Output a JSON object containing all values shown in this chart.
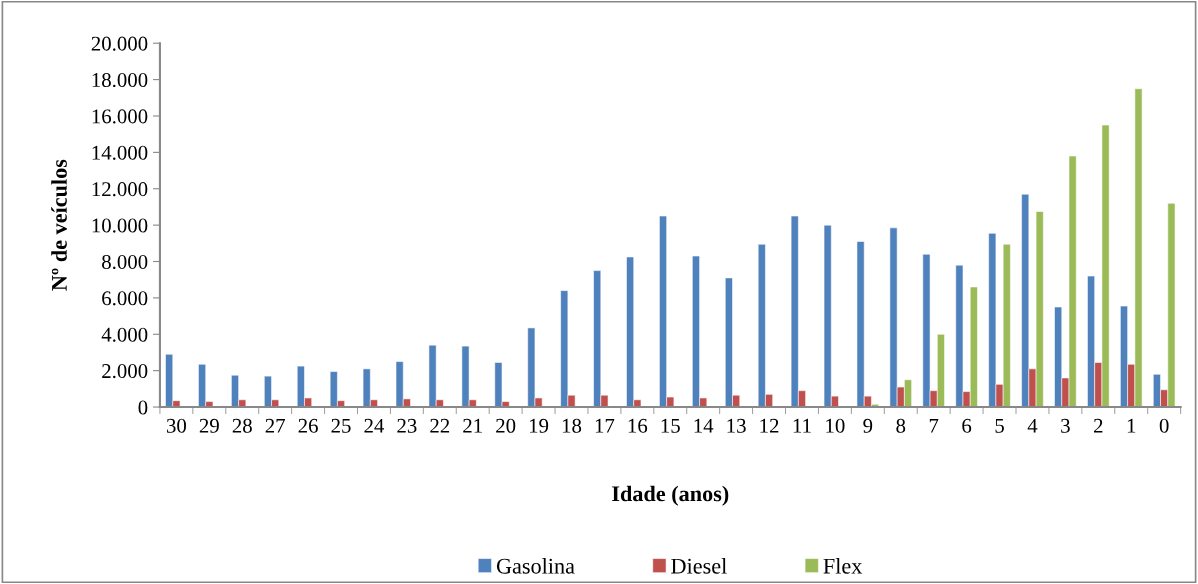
{
  "chart_data": {
    "type": "bar",
    "xlabel": "Idade (anos)",
    "ylabel": "Nº de veículos",
    "categories": [
      "30",
      "29",
      "28",
      "27",
      "26",
      "25",
      "24",
      "23",
      "22",
      "21",
      "20",
      "19",
      "18",
      "17",
      "16",
      "15",
      "14",
      "13",
      "12",
      "11",
      "10",
      "9",
      "8",
      "7",
      "6",
      "5",
      "4",
      "3",
      "2",
      "1",
      "0"
    ],
    "series": [
      {
        "name": "Gasolina",
        "color": "#4f81bd",
        "values": [
          2900,
          2350,
          1750,
          1700,
          2250,
          1950,
          2100,
          2500,
          3400,
          3350,
          2450,
          4350,
          6400,
          7500,
          8250,
          10500,
          8300,
          7100,
          8950,
          10500,
          10000,
          9100,
          9850,
          8400,
          7800,
          9550,
          11700,
          5500,
          7200,
          5550,
          1800
        ]
      },
      {
        "name": "Diesel",
        "color": "#c0504d",
        "values": [
          350,
          300,
          400,
          400,
          500,
          350,
          400,
          450,
          400,
          400,
          300,
          500,
          650,
          650,
          400,
          550,
          500,
          650,
          700,
          900,
          600,
          600,
          1100,
          900,
          850,
          1250,
          2100,
          1600,
          2450,
          2350,
          950
        ]
      },
      {
        "name": "Flex",
        "color": "#9bbb59",
        "values": [
          null,
          null,
          null,
          null,
          null,
          null,
          null,
          null,
          null,
          null,
          null,
          null,
          null,
          null,
          null,
          null,
          null,
          null,
          null,
          null,
          null,
          150,
          1500,
          4000,
          6600,
          8950,
          10750,
          13800,
          15500,
          17500,
          11200
        ]
      }
    ],
    "ylim": [
      0,
      20000
    ],
    "yticks": [
      {
        "value": 0,
        "label": "0"
      },
      {
        "value": 2000,
        "label": "2.000"
      },
      {
        "value": 4000,
        "label": "4.000"
      },
      {
        "value": 6000,
        "label": "6.000"
      },
      {
        "value": 8000,
        "label": "8.000"
      },
      {
        "value": 10000,
        "label": "10.000"
      },
      {
        "value": 12000,
        "label": "12.000"
      },
      {
        "value": 14000,
        "label": "14.000"
      },
      {
        "value": 16000,
        "label": "16.000"
      },
      {
        "value": 18000,
        "label": "18.000"
      },
      {
        "value": 20000,
        "label": "20.000"
      }
    ],
    "grid": false,
    "legend": "bottom"
  }
}
